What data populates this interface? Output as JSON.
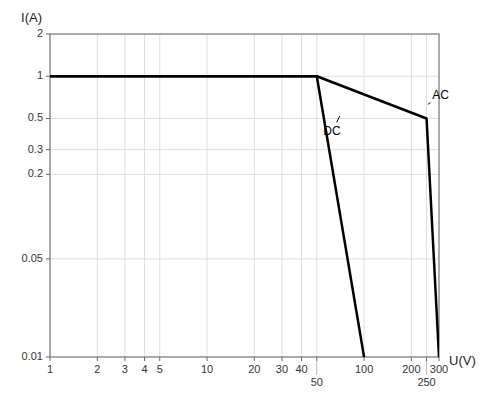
{
  "chart_data": {
    "type": "line",
    "xlabel": "U(V)",
    "ylabel": "I(A)",
    "log": true,
    "grid": true,
    "xlim": [
      1,
      300
    ],
    "ylim": [
      0.01,
      2
    ],
    "xticks": [
      1,
      2,
      3,
      4,
      5,
      10,
      20,
      30,
      40,
      50,
      100,
      200,
      250,
      300
    ],
    "yticks": [
      0.01,
      0.05,
      0.2,
      0.3,
      0.5,
      1,
      2
    ],
    "series": [
      {
        "x": [
          1,
          50,
          100
        ],
        "values": [
          1,
          1,
          0.01
        ],
        "color": "#000000"
      },
      {
        "x": [
          1,
          50,
          250,
          300
        ],
        "values": [
          1,
          1,
          0.5,
          0.01
        ],
        "color": "#000000"
      }
    ],
    "annotations": [
      {
        "text": "AC",
        "x": 272,
        "y": 0.73,
        "target_x": 255,
        "target_y": 0.63
      },
      {
        "text": "DC",
        "x": 55,
        "y": 0.4,
        "target_x": 70,
        "target_y": 0.52
      }
    ]
  }
}
